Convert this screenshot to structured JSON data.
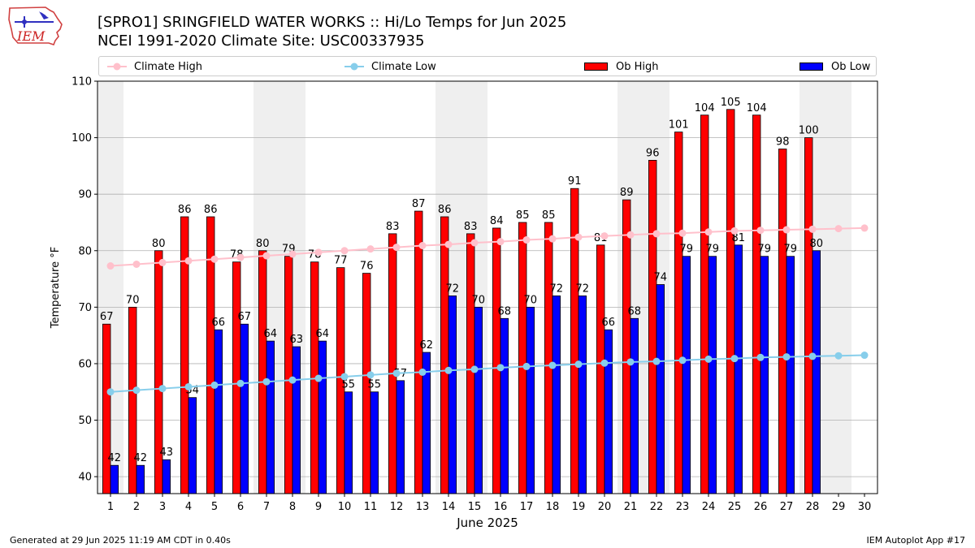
{
  "header": {
    "logo_text": "IEM",
    "title_line1": "[SPRO1] SRINGFIELD WATER WORKS :: Hi/Lo Temps for Jun 2025",
    "title_line2": "NCEI 1991-2020 Climate Site: USC00337935"
  },
  "legend": {
    "climate_high": "Climate High",
    "climate_low": "Climate Low",
    "ob_high": "Ob High",
    "ob_low": "Ob Low"
  },
  "colors": {
    "ob_high": "#ff0000",
    "ob_low": "#0000ff",
    "climate_high": "#ffc0cb",
    "climate_low": "#87ceeb",
    "weekend_band": "#efefef",
    "grid": "#b0b0b0"
  },
  "chart_data": {
    "type": "bar",
    "title": "[SPRO1] SRINGFIELD WATER WORKS :: Hi/Lo Temps for Jun 2025",
    "subtitle": "NCEI 1991-2020 Climate Site: USC00337935",
    "xlabel": "June 2025",
    "ylabel": "Temperature °F",
    "ylim": [
      37,
      110
    ],
    "yticks": [
      40,
      50,
      60,
      70,
      80,
      90,
      100,
      110
    ],
    "grid": true,
    "legend_position": "top",
    "categories": [
      "1",
      "2",
      "3",
      "4",
      "5",
      "6",
      "7",
      "8",
      "9",
      "10",
      "11",
      "12",
      "13",
      "14",
      "15",
      "16",
      "17",
      "18",
      "19",
      "20",
      "21",
      "22",
      "23",
      "24",
      "25",
      "26",
      "27",
      "28",
      "29",
      "30"
    ],
    "weekend_days": [
      1,
      7,
      8,
      14,
      15,
      21,
      22,
      28,
      29
    ],
    "series": [
      {
        "name": "Ob High",
        "kind": "bar",
        "values": [
          67,
          70,
          80,
          86,
          86,
          78,
          80,
          79,
          78,
          77,
          76,
          83,
          87,
          86,
          83,
          84,
          85,
          85,
          91,
          81,
          89,
          96,
          101,
          104,
          105,
          104,
          98,
          100,
          null,
          null
        ]
      },
      {
        "name": "Ob Low",
        "kind": "bar",
        "values": [
          42,
          42,
          43,
          54,
          66,
          67,
          64,
          63,
          64,
          55,
          55,
          57,
          62,
          72,
          70,
          68,
          70,
          72,
          72,
          66,
          68,
          74,
          79,
          79,
          81,
          79,
          79,
          80,
          null,
          null
        ]
      },
      {
        "name": "Climate High",
        "kind": "line",
        "values": [
          77.3,
          77.6,
          77.9,
          78.2,
          78.5,
          78.8,
          79.1,
          79.4,
          79.7,
          80.0,
          80.3,
          80.6,
          80.9,
          81.1,
          81.4,
          81.6,
          81.9,
          82.1,
          82.4,
          82.6,
          82.8,
          83.0,
          83.1,
          83.3,
          83.5,
          83.6,
          83.7,
          83.8,
          83.9,
          84.0
        ]
      },
      {
        "name": "Climate Low",
        "kind": "line",
        "values": [
          55.0,
          55.3,
          55.6,
          55.9,
          56.2,
          56.5,
          56.8,
          57.1,
          57.4,
          57.7,
          58.0,
          58.3,
          58.5,
          58.8,
          59.0,
          59.3,
          59.5,
          59.7,
          59.9,
          60.1,
          60.3,
          60.4,
          60.6,
          60.8,
          60.9,
          61.1,
          61.2,
          61.3,
          61.4,
          61.5
        ]
      }
    ]
  },
  "footer": {
    "generated": "Generated at 29 Jun 2025 11:19 AM CDT in 0.40s",
    "app": "IEM Autoplot App #17"
  }
}
